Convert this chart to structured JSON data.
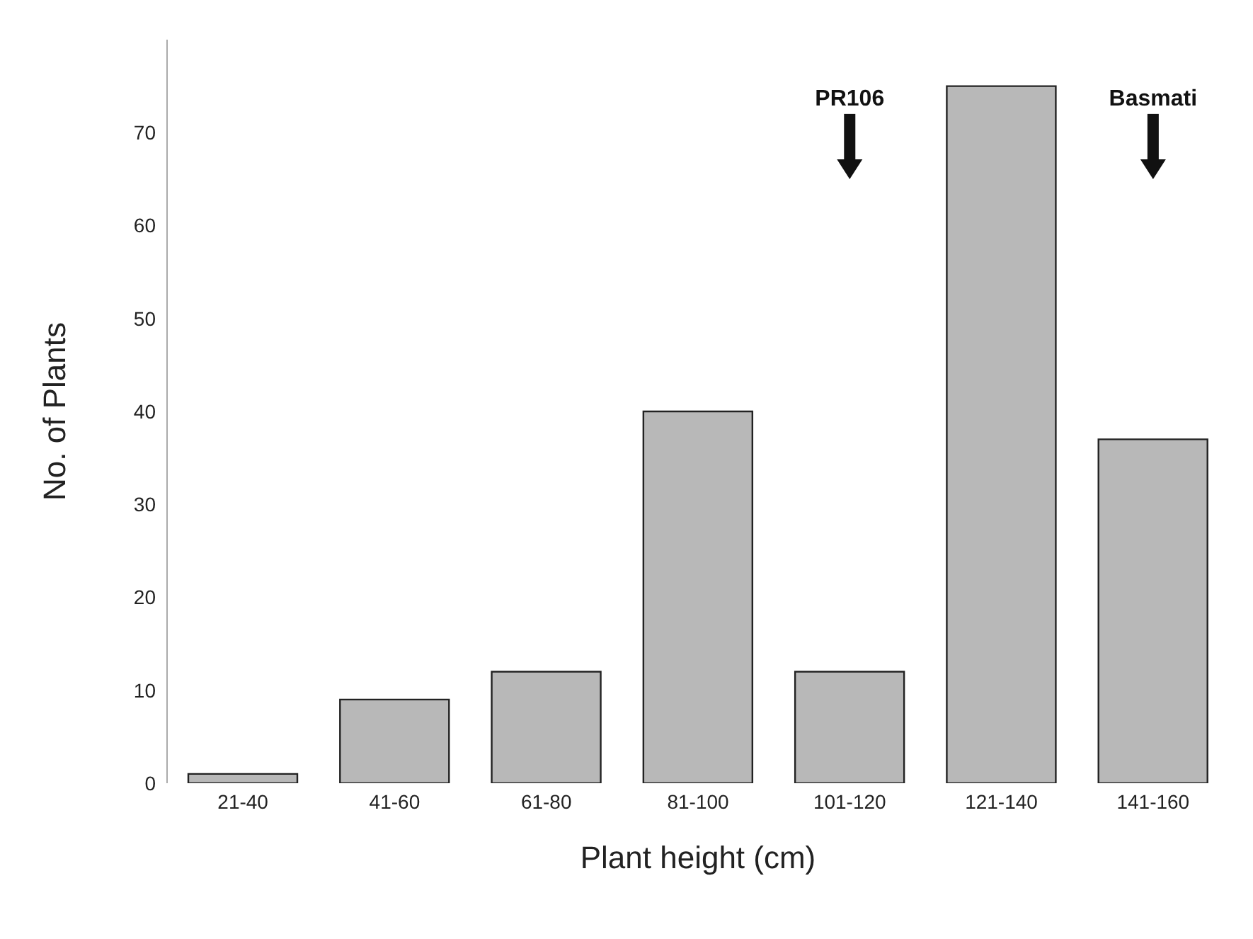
{
  "chart_data": {
    "type": "bar",
    "xlabel": "Plant height (cm)",
    "ylabel": "No. of Plants",
    "categories": [
      "21-40",
      "41-60",
      "61-80",
      "81-100",
      "101-120",
      "121-140",
      "141-160"
    ],
    "values": [
      1,
      9,
      12,
      40,
      12,
      75,
      37
    ],
    "color": "#b8b8b8",
    "ylim": [
      0,
      80
    ],
    "yticks": [
      0,
      10,
      20,
      30,
      40,
      50,
      60,
      70
    ],
    "grid": false,
    "annotations": [
      "PR106",
      "Basmati"
    ]
  }
}
